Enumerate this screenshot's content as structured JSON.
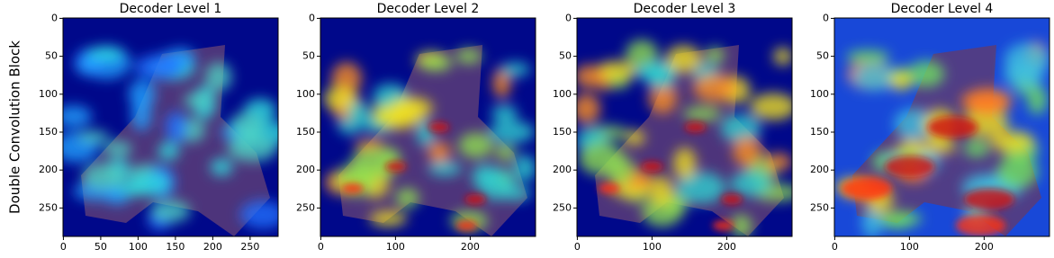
{
  "chart_data": [
    {
      "type": "image",
      "title": "Decoder Level 1",
      "ylabel": "Double Convolution Block",
      "xlim": [
        -0.5,
        287.5
      ],
      "ylim": [
        287.5,
        -0.5
      ],
      "xticks": [
        0,
        50,
        100,
        150,
        200,
        250
      ],
      "yticks": [
        0,
        50,
        100,
        150,
        200,
        250
      ]
    },
    {
      "type": "image",
      "title": "Decoder Level 2",
      "xlim": [
        -0.5,
        287.5
      ],
      "ylim": [
        287.5,
        -0.5
      ],
      "xticks": [
        0,
        100,
        200
      ],
      "yticks": [
        0,
        50,
        100,
        150,
        200,
        250
      ]
    },
    {
      "type": "image",
      "title": "Decoder Level 3",
      "xlim": [
        -0.5,
        287.5
      ],
      "ylim": [
        287.5,
        -0.5
      ],
      "xticks": [
        0,
        100,
        200
      ],
      "yticks": [
        0,
        50,
        100,
        150,
        200,
        250
      ]
    },
    {
      "type": "image",
      "title": "Decoder Level 4",
      "xlim": [
        -0.5,
        287.5
      ],
      "ylim": [
        287.5,
        -0.5
      ],
      "xticks": [
        0,
        100,
        200
      ],
      "yticks": [
        0,
        50,
        100,
        150,
        200,
        250
      ]
    }
  ]
}
